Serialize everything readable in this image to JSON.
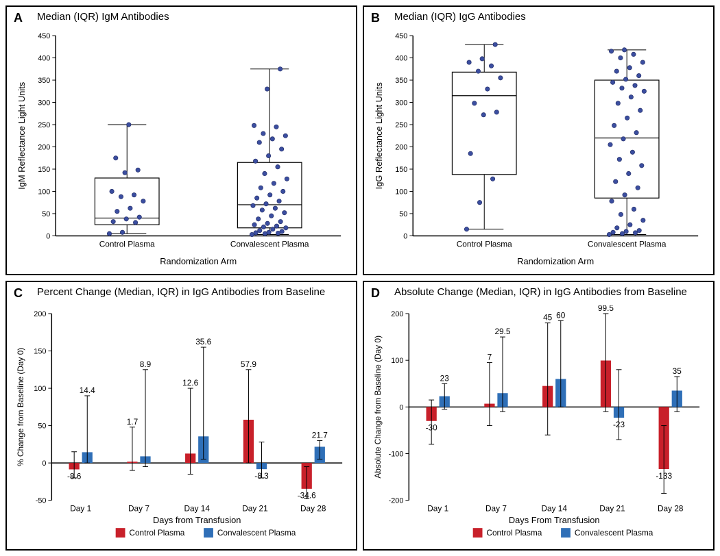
{
  "colors": {
    "panel_border": "#000000",
    "axis": "#000000",
    "box_stroke": "#000000",
    "dot_fill": "#3b4ea0",
    "dot_stroke": "#2a3570",
    "bar_control": "#c8202a",
    "bar_convalescent": "#2f6fb7",
    "error_stroke": "#000000",
    "background": "#ffffff"
  },
  "legend": {
    "control": "Control Plasma",
    "convalescent": "Convalescent Plasma"
  },
  "panelA": {
    "letter": "A",
    "title": "Median (IQR) IgM Antibodies",
    "y_label": "IgM Reflectance Light Units",
    "x_label": "Randomization Arm",
    "categories": [
      "Control Plasma",
      "Convalescent Plasma"
    ],
    "ylim": [
      0,
      450
    ],
    "ytick_step": 50,
    "boxes": [
      {
        "q1": 25,
        "median": 40,
        "q3": 130,
        "whisker_lo": 5,
        "whisker_hi": 250
      },
      {
        "q1": 18,
        "median": 70,
        "q3": 165,
        "whisker_lo": 3,
        "whisker_hi": 375
      }
    ],
    "points": [
      [
        5,
        8,
        30,
        32,
        38,
        42,
        55,
        62,
        78,
        88,
        92,
        100,
        142,
        148,
        175,
        250
      ],
      [
        3,
        5,
        6,
        7,
        8,
        10,
        12,
        15,
        18,
        20,
        22,
        25,
        28,
        32,
        38,
        45,
        52,
        58,
        62,
        68,
        72,
        78,
        85,
        92,
        100,
        108,
        118,
        128,
        140,
        155,
        168,
        180,
        195,
        210,
        218,
        225,
        230,
        245,
        248,
        330,
        375
      ]
    ]
  },
  "panelB": {
    "letter": "B",
    "title": "Median (IQR) IgG Antibodies",
    "y_label": "IgG Reflectance Light Units",
    "x_label": "Randomization Arm",
    "categories": [
      "Control Plasma",
      "Convalescent Plasma"
    ],
    "ylim": [
      0,
      450
    ],
    "ytick_step": 50,
    "boxes": [
      {
        "q1": 138,
        "median": 315,
        "q3": 368,
        "whisker_lo": 15,
        "whisker_hi": 430
      },
      {
        "q1": 85,
        "median": 220,
        "q3": 350,
        "whisker_lo": 3,
        "whisker_hi": 418
      }
    ],
    "points": [
      [
        15,
        75,
        128,
        185,
        272,
        278,
        298,
        330,
        355,
        370,
        382,
        390,
        398,
        430
      ],
      [
        3,
        5,
        7,
        8,
        10,
        12,
        18,
        25,
        35,
        48,
        60,
        78,
        92,
        108,
        122,
        140,
        158,
        172,
        188,
        205,
        218,
        232,
        248,
        265,
        282,
        298,
        312,
        325,
        332,
        338,
        345,
        352,
        360,
        370,
        378,
        390,
        400,
        408,
        415,
        418
      ]
    ]
  },
  "panelC": {
    "letter": "C",
    "title": "Percent Change (Median, IQR) in IgG Antibodies from Baseline",
    "y_label": "% Change from Baseline (Day 0)",
    "x_label": "Days from Transfusion",
    "categories": [
      "Day 1",
      "Day 7",
      "Day 14",
      "Day 21",
      "Day 28"
    ],
    "ylim": [
      -50,
      200
    ],
    "ytick_step": 50,
    "bars": {
      "control": [
        -8.6,
        1.7,
        12.6,
        57.9,
        -34.6
      ],
      "convalescent": [
        14.4,
        8.9,
        35.6,
        -8.3,
        21.7
      ]
    },
    "errors": {
      "control_lo": [
        -20,
        -10,
        -15,
        0,
        -48
      ],
      "control_hi": [
        15,
        48,
        100,
        125,
        -5
      ],
      "convalescent_lo": [
        0,
        -5,
        5,
        -20,
        5
      ],
      "convalescent_hi": [
        90,
        125,
        155,
        28,
        30
      ]
    },
    "value_labels": {
      "control": [
        "-8.6",
        "1.7",
        "12.6",
        "57.9",
        "-34.6"
      ],
      "convalescent": [
        "14.4",
        "8.9",
        "35.6",
        "-8.3",
        "21.7"
      ]
    }
  },
  "panelD": {
    "letter": "D",
    "title": "Absolute Change (Median, IQR) in IgG Antibodies from Baseline",
    "y_label": "Absolute Change from Baseline (Day 0)",
    "x_label": "Days From Transfusion",
    "categories": [
      "Day 1",
      "Day 7",
      "Day 14",
      "Day 21",
      "Day 28"
    ],
    "ylim": [
      -200,
      200
    ],
    "ytick_step": 100,
    "bars": {
      "control": [
        -30,
        7,
        45,
        99.5,
        -133
      ],
      "convalescent": [
        23,
        29.5,
        60,
        -23,
        35
      ]
    },
    "errors": {
      "control_lo": [
        -80,
        -40,
        -60,
        -10,
        -185
      ],
      "control_hi": [
        15,
        95,
        180,
        200,
        -40
      ],
      "convalescent_lo": [
        -5,
        -10,
        0,
        -70,
        -10
      ],
      "convalescent_hi": [
        50,
        150,
        185,
        80,
        65
      ]
    },
    "value_labels": {
      "control": [
        "-30",
        "7",
        "45",
        "99.5",
        "-133"
      ],
      "convalescent": [
        "23",
        "29.5",
        "60",
        "-23",
        "35"
      ]
    }
  }
}
